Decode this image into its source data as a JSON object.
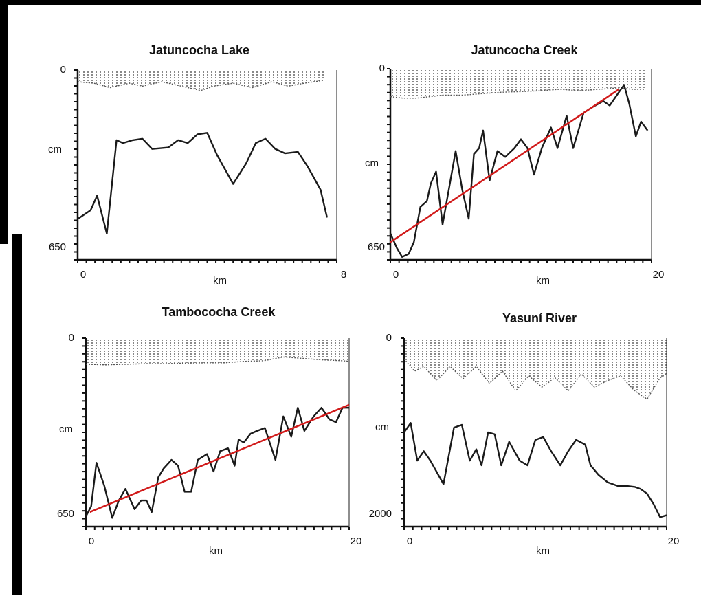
{
  "chart_data": [
    {
      "type": "line",
      "title": "Jatuncocha Lake",
      "xlabel": "km",
      "ylabel": "cm",
      "xlim": [
        0,
        8
      ],
      "ylim": [
        650,
        0
      ],
      "x_ticks": [
        "0",
        "8"
      ],
      "y_ticks": [
        "0",
        "650"
      ],
      "grid": false,
      "trend_line": null,
      "series": [
        {
          "x": [
            0,
            0.4,
            0.6,
            0.9,
            1.2,
            1.4,
            1.7,
            2.0,
            2.3,
            2.8,
            3.1,
            3.4,
            3.7,
            4.0,
            4.3,
            4.8,
            5.2,
            5.5,
            5.8,
            6.1,
            6.4,
            6.8,
            7.1,
            7.5,
            7.7
          ],
          "y": [
            510,
            480,
            430,
            560,
            240,
            250,
            240,
            235,
            270,
            265,
            240,
            250,
            220,
            215,
            290,
            390,
            320,
            250,
            235,
            270,
            285,
            280,
            330,
            410,
            505
          ]
        },
        {
          "x": [
            0,
            0.5,
            1.0,
            1.6,
            2.0,
            2.6,
            3.2,
            3.8,
            4.2,
            4.8,
            5.4,
            6.0,
            6.5,
            7.0,
            7.6
          ],
          "y": [
            40,
            45,
            60,
            45,
            55,
            40,
            55,
            70,
            55,
            45,
            60,
            40,
            55,
            45,
            35
          ]
        }
      ]
    },
    {
      "type": "line",
      "title": "Jatuncocha Creek",
      "xlabel": "km",
      "ylabel": "cm",
      "xlim": [
        0,
        20
      ],
      "ylim": [
        650,
        0
      ],
      "x_ticks": [
        "0",
        "20"
      ],
      "y_ticks": [
        "0",
        "650"
      ],
      "grid": false,
      "trend_line": {
        "x": [
          0,
          17.5
        ],
        "y": [
          590,
          70
        ]
      },
      "series": [
        {
          "x": [
            0,
            0.5,
            0.9,
            1.4,
            1.8,
            2.3,
            2.8,
            3.1,
            3.5,
            4.0,
            4.6,
            5.0,
            5.5,
            6.0,
            6.4,
            6.8,
            7.1,
            7.6,
            8.2,
            8.8,
            9.5,
            10.0,
            10.5,
            11.0,
            11.6,
            12.3,
            12.8,
            13.5,
            14.0,
            14.8,
            15.5,
            16.3,
            16.8,
            17.5,
            17.9,
            18.3,
            18.8,
            19.2,
            19.7
          ],
          "y": [
            560,
            610,
            640,
            630,
            590,
            470,
            450,
            390,
            350,
            530,
            380,
            280,
            410,
            510,
            290,
            270,
            210,
            380,
            280,
            300,
            270,
            240,
            270,
            360,
            270,
            200,
            270,
            160,
            270,
            150,
            130,
            110,
            125,
            80,
            55,
            120,
            230,
            180,
            210
          ]
        },
        {
          "x": [
            0,
            1.0,
            2.0,
            3.0,
            4.0,
            5.5,
            7.0,
            8.5,
            10.0,
            11.5,
            13.0,
            14.5,
            16.0,
            17.5,
            18.5,
            19.5
          ],
          "y": [
            95,
            100,
            100,
            95,
            90,
            90,
            85,
            80,
            78,
            75,
            70,
            75,
            70,
            65,
            70,
            70
          ]
        }
      ]
    },
    {
      "type": "line",
      "title": "Tambococha Creek",
      "xlabel": "km",
      "ylabel": "cm",
      "xlim": [
        0,
        20
      ],
      "ylim": [
        650,
        0
      ],
      "x_ticks": [
        "0",
        "20"
      ],
      "y_ticks": [
        "0",
        "650"
      ],
      "grid": false,
      "trend_line": {
        "x": [
          0.3,
          20
        ],
        "y": [
          600,
          230
        ]
      },
      "series": [
        {
          "x": [
            0,
            0.4,
            0.8,
            1.4,
            2.0,
            2.5,
            3.0,
            3.7,
            4.2,
            4.6,
            5.0,
            5.5,
            5.9,
            6.5,
            7.0,
            7.5,
            8.0,
            8.5,
            9.2,
            9.7,
            10.2,
            10.8,
            11.3,
            11.6,
            12.0,
            12.5,
            13.0,
            13.6,
            14.4,
            15.0,
            15.6,
            16.1,
            16.6,
            17.3,
            17.9,
            18.5,
            19.0,
            19.5,
            20.0
          ],
          "y": [
            615,
            580,
            430,
            510,
            620,
            560,
            520,
            590,
            560,
            560,
            600,
            480,
            450,
            420,
            440,
            530,
            530,
            420,
            400,
            460,
            390,
            380,
            440,
            350,
            360,
            330,
            320,
            310,
            420,
            270,
            340,
            240,
            320,
            270,
            240,
            280,
            290,
            240,
            240
          ]
        },
        {
          "x": [
            0,
            1.5,
            3.0,
            4.5,
            6.0,
            7.5,
            9.0,
            10.5,
            12.0,
            13.5,
            15.0,
            16.5,
            18.0,
            19.5,
            20.0
          ],
          "y": [
            90,
            92,
            90,
            88,
            88,
            86,
            85,
            85,
            80,
            78,
            65,
            70,
            75,
            78,
            80
          ]
        }
      ]
    },
    {
      "type": "line",
      "title": "Yasuní River",
      "xlabel": "km",
      "ylabel": "cm",
      "xlim": [
        0,
        20
      ],
      "ylim": [
        2000,
        0
      ],
      "x_ticks": [
        "0",
        "20"
      ],
      "y_ticks": [
        "0",
        "2000"
      ],
      "grid": false,
      "trend_line": null,
      "series": [
        {
          "x": [
            0,
            0.5,
            1.0,
            1.5,
            2.0,
            3.0,
            3.8,
            4.4,
            5.0,
            5.5,
            5.9,
            6.4,
            6.9,
            7.4,
            8.0,
            8.8,
            9.4,
            10.0,
            10.6,
            11.2,
            11.9,
            12.5,
            13.1,
            13.8,
            14.2,
            14.8,
            15.5,
            16.3,
            17.0,
            17.6,
            18.0,
            18.5,
            19.0,
            19.5,
            20.0
          ],
          "y": [
            1000,
            900,
            1300,
            1200,
            1300,
            1550,
            950,
            920,
            1300,
            1180,
            1350,
            1000,
            1020,
            1350,
            1100,
            1300,
            1350,
            1080,
            1050,
            1200,
            1350,
            1200,
            1080,
            1130,
            1350,
            1450,
            1530,
            1570,
            1570,
            1580,
            1600,
            1650,
            1760,
            1900,
            1880
          ]
        },
        {
          "x": [
            0,
            0.8,
            1.5,
            2.5,
            3.5,
            4.5,
            5.5,
            6.5,
            7.5,
            8.5,
            9.5,
            10.5,
            11.5,
            12.5,
            13.5,
            14.5,
            15.5,
            16.5,
            17.5,
            18.5,
            19.5,
            20.0
          ],
          "y": [
            220,
            350,
            300,
            450,
            300,
            430,
            300,
            480,
            350,
            560,
            400,
            520,
            420,
            560,
            380,
            520,
            450,
            400,
            550,
            650,
            420,
            380
          ]
        }
      ]
    }
  ],
  "colors": {
    "line": "#1a1a1a",
    "stipple": "#555555",
    "trend": "#d11a1a",
    "frame": "#000000"
  }
}
